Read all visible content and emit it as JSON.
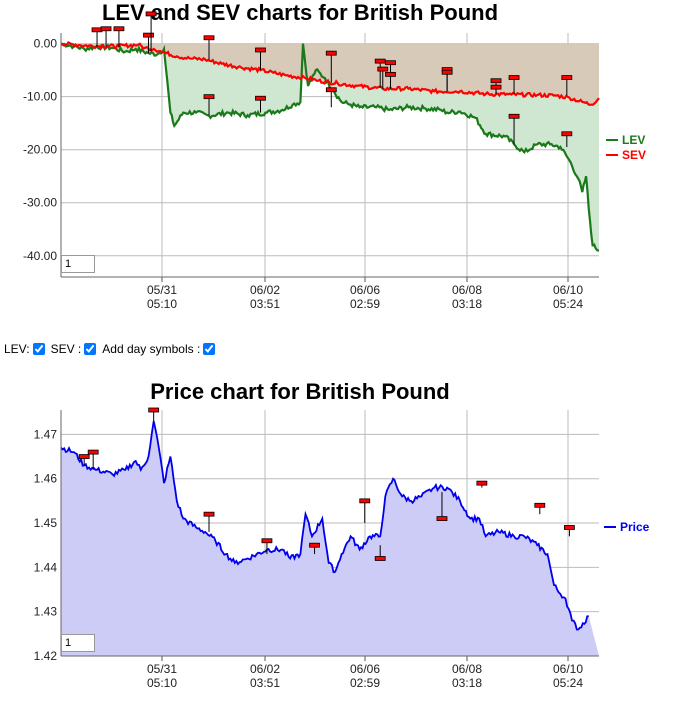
{
  "chart_data": [
    {
      "type": "line",
      "title": "LEV and SEV charts for British Pound",
      "y_tick_labels": [
        "0.00",
        "-10.00",
        "-20.00",
        "-30.00",
        "-40.00"
      ],
      "ylim": [
        -44,
        2
      ],
      "x_tick_labels": [
        {
          "date": "05/31",
          "time": "05:10"
        },
        {
          "date": "06/02",
          "time": "03:51"
        },
        {
          "date": "06/06",
          "time": "02:59"
        },
        {
          "date": "06/08",
          "time": "03:18"
        },
        {
          "date": "06/10",
          "time": "05:24"
        }
      ],
      "grid": true,
      "legend_placement": "right",
      "series": [
        {
          "name": "LEV",
          "color": "#1a7a1a",
          "points": [
            [
              0,
              0
            ],
            [
              10,
              -0.5
            ],
            [
              18,
              -1
            ],
            [
              28,
              -0.6
            ],
            [
              40,
              -0.8
            ],
            [
              50,
              -1.5
            ],
            [
              58,
              -1.0
            ],
            [
              68,
              -1.8
            ],
            [
              75,
              -2
            ],
            [
              80,
              -1
            ],
            [
              85,
              -13
            ],
            [
              88,
              -15.5
            ],
            [
              95,
              -13
            ],
            [
              105,
              -13
            ],
            [
              115,
              -13.6
            ],
            [
              130,
              -13
            ],
            [
              145,
              -13.5
            ],
            [
              160,
              -13
            ],
            [
              172,
              -12.5
            ],
            [
              180,
              -11.5
            ],
            [
              186,
              -11
            ],
            [
              188,
              0
            ],
            [
              192,
              -8
            ],
            [
              198,
              -5
            ],
            [
              205,
              -6.5
            ],
            [
              212,
              -9
            ],
            [
              218,
              -11
            ],
            [
              225,
              -11.5
            ],
            [
              232,
              -12
            ],
            [
              245,
              -12
            ],
            [
              255,
              -12.5
            ],
            [
              270,
              -12
            ],
            [
              282,
              -12.2
            ],
            [
              295,
              -12.5
            ],
            [
              300,
              -13
            ],
            [
              310,
              -12.8
            ],
            [
              322,
              -14
            ],
            [
              330,
              -17
            ],
            [
              345,
              -17.5
            ],
            [
              352,
              -19
            ],
            [
              360,
              -20.5
            ],
            [
              370,
              -19
            ],
            [
              380,
              -19
            ],
            [
              388,
              -19.5
            ],
            [
              395,
              -22
            ],
            [
              402,
              -25.5
            ],
            [
              405,
              -28
            ],
            [
              408,
              -25
            ],
            [
              410,
              -31
            ],
            [
              413,
              -38
            ],
            [
              418,
              -39
            ]
          ]
        },
        {
          "name": "SEV",
          "color": "#ff0000",
          "points": [
            [
              0,
              0
            ],
            [
              15,
              -0.3
            ],
            [
              30,
              -0.5
            ],
            [
              45,
              -0.5
            ],
            [
              60,
              -0.2
            ],
            [
              65,
              -0.8
            ],
            [
              72,
              -1
            ],
            [
              78,
              -1.5
            ],
            [
              82,
              -1.8
            ],
            [
              90,
              -2.4
            ],
            [
              100,
              -2.8
            ],
            [
              112,
              -3
            ],
            [
              125,
              -3.8
            ],
            [
              140,
              -4.5
            ],
            [
              155,
              -5
            ],
            [
              165,
              -5.5
            ],
            [
              175,
              -6
            ],
            [
              190,
              -6.5
            ],
            [
              200,
              -7
            ],
            [
              215,
              -7.5
            ],
            [
              230,
              -8
            ],
            [
              250,
              -8.5
            ],
            [
              270,
              -8.5
            ],
            [
              290,
              -9
            ],
            [
              310,
              -9
            ],
            [
              330,
              -9.5
            ],
            [
              350,
              -9.6
            ],
            [
              370,
              -9.7
            ],
            [
              385,
              -9.8
            ],
            [
              395,
              -10.2
            ],
            [
              405,
              -11
            ],
            [
              412,
              -11.5
            ],
            [
              418,
              -10.3
            ]
          ]
        }
      ],
      "day_symbols": [
        {
          "x": 28,
          "y": -0.6,
          "v": 2.6
        },
        {
          "x": 35,
          "y": -0.6,
          "v": 2.8
        },
        {
          "x": 45,
          "y": -0.7,
          "v": 2.8
        },
        {
          "x": 68,
          "y": -1.8,
          "v": 1.6
        },
        {
          "x": 70,
          "y": -1.5,
          "v": 5.6
        },
        {
          "x": 115,
          "y": -3,
          "v": 1.1
        },
        {
          "x": 115,
          "y": -13.5,
          "v": -10.0
        },
        {
          "x": 155,
          "y": -5,
          "v": -1.2
        },
        {
          "x": 155,
          "y": -13,
          "v": -10.3
        },
        {
          "x": 210,
          "y": -7.4,
          "v": -1.8
        },
        {
          "x": 210,
          "y": -12,
          "v": -8.7
        },
        {
          "x": 248,
          "y": -8.3,
          "v": -3.3
        },
        {
          "x": 250,
          "y": -8.5,
          "v": -4.8
        },
        {
          "x": 256,
          "y": -8.5,
          "v": -3.6
        },
        {
          "x": 256,
          "y": -8.5,
          "v": -5.8
        },
        {
          "x": 300,
          "y": -9,
          "v": -4.9
        },
        {
          "x": 300,
          "y": -9,
          "v": -5.4
        },
        {
          "x": 338,
          "y": -9.5,
          "v": -7.0
        },
        {
          "x": 338,
          "y": -9.5,
          "v": -8.2
        },
        {
          "x": 352,
          "y": -19,
          "v": -13.7
        },
        {
          "x": 352,
          "y": -9.5,
          "v": -6.4
        },
        {
          "x": 393,
          "y": -9.8,
          "v": -6.4
        },
        {
          "x": 393,
          "y": -19.5,
          "v": -17.0
        }
      ]
    },
    {
      "type": "area",
      "title": "Price chart for British Pound",
      "y_tick_labels": [
        "1.47",
        "1.46",
        "1.45",
        "1.44",
        "1.43",
        "1.42"
      ],
      "ylim": [
        1.42,
        1.4755
      ],
      "x_tick_labels": [
        {
          "date": "05/31",
          "time": "05:10"
        },
        {
          "date": "06/02",
          "time": "03:51"
        },
        {
          "date": "06/06",
          "time": "02:59"
        },
        {
          "date": "06/08",
          "time": "03:18"
        },
        {
          "date": "06/10",
          "time": "05:24"
        }
      ],
      "grid": true,
      "legend_placement": "right",
      "series": [
        {
          "name": "Price",
          "color": "#0000ee",
          "points": [
            [
              0,
              1.467
            ],
            [
              10,
              1.466
            ],
            [
              18,
              1.463
            ],
            [
              28,
              1.462
            ],
            [
              40,
              1.461
            ],
            [
              50,
              1.462
            ],
            [
              58,
              1.464
            ],
            [
              62,
              1.462
            ],
            [
              68,
              1.465
            ],
            [
              72,
              1.473
            ],
            [
              76,
              1.467
            ],
            [
              80,
              1.459
            ],
            [
              85,
              1.465
            ],
            [
              90,
              1.455
            ],
            [
              95,
              1.451
            ],
            [
              105,
              1.449
            ],
            [
              112,
              1.448
            ],
            [
              120,
              1.446
            ],
            [
              128,
              1.443
            ],
            [
              135,
              1.441
            ],
            [
              145,
              1.442
            ],
            [
              160,
              1.444
            ],
            [
              172,
              1.444
            ],
            [
              178,
              1.442
            ],
            [
              186,
              1.443
            ],
            [
              190,
              1.452
            ],
            [
              195,
              1.447
            ],
            [
              203,
              1.451
            ],
            [
              208,
              1.441
            ],
            [
              213,
              1.439
            ],
            [
              218,
              1.443
            ],
            [
              225,
              1.447
            ],
            [
              232,
              1.444
            ],
            [
              240,
              1.447
            ],
            [
              248,
              1.447
            ],
            [
              252,
              1.456
            ],
            [
              258,
              1.46
            ],
            [
              265,
              1.456
            ],
            [
              272,
              1.455
            ],
            [
              280,
              1.456
            ],
            [
              290,
              1.458
            ],
            [
              300,
              1.458
            ],
            [
              310,
              1.455
            ],
            [
              318,
              1.451
            ],
            [
              325,
              1.451
            ],
            [
              330,
              1.447
            ],
            [
              340,
              1.448
            ],
            [
              352,
              1.447
            ],
            [
              360,
              1.447
            ],
            [
              370,
              1.445
            ],
            [
              378,
              1.443
            ],
            [
              383,
              1.436
            ],
            [
              388,
              1.434
            ],
            [
              392,
              1.433
            ],
            [
              397,
              1.428
            ],
            [
              402,
              1.426
            ],
            [
              410,
              1.429
            ]
          ]
        }
      ],
      "day_symbols": [
        {
          "x": 18,
          "y": 1.463,
          "v": 1.465
        },
        {
          "x": 25,
          "y": 1.462,
          "v": 1.466
        },
        {
          "x": 72,
          "y": 1.473,
          "v": 1.4755
        },
        {
          "x": 115,
          "y": 1.448,
          "v": 1.452
        },
        {
          "x": 160,
          "y": 1.443,
          "v": 1.446
        },
        {
          "x": 197,
          "y": 1.443,
          "v": 1.445
        },
        {
          "x": 236,
          "y": 1.45,
          "v": 1.455
        },
        {
          "x": 248,
          "y": 1.445,
          "v": 1.442
        },
        {
          "x": 296,
          "y": 1.457,
          "v": 1.451
        },
        {
          "x": 327,
          "y": 1.458,
          "v": 1.459
        },
        {
          "x": 372,
          "y": 1.452,
          "v": 1.454
        },
        {
          "x": 395,
          "y": 1.447,
          "v": 1.449
        }
      ]
    }
  ],
  "controls": {
    "lev_label": "LEV:",
    "sev_label": "SEV :",
    "day_symbols_label": "Add day symbols :",
    "zoom_value_top": "1",
    "zoom_value_bottom": "1"
  },
  "colors": {
    "lev_fill": "#cfe6d0",
    "sev_fill": "#d8c6b6",
    "price_fill": "#ccccf7",
    "grid": "#bbbbbb",
    "marker_fill": "#ff0000"
  }
}
